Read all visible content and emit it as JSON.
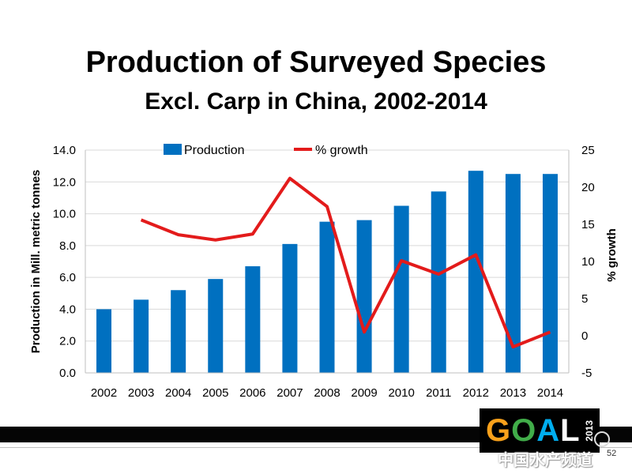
{
  "slide": {
    "title": "Production of Surveyed Species",
    "subtitle": "Excl. Carp in China, 2002-2014",
    "page_number": "52",
    "logo_text": "GOAL",
    "logo_year": "2013",
    "watermark": "中国水产频道"
  },
  "colors": {
    "bar": "#0070C0",
    "line": "#E31B1B",
    "grid": "#D9D9D9",
    "logo_letters": [
      "#F9A11B",
      "#41AD49",
      "#00AEEF",
      "#ffffff"
    ]
  },
  "chart_data": {
    "type": "bar",
    "categories": [
      "2002",
      "2003",
      "2004",
      "2005",
      "2006",
      "2007",
      "2008",
      "2009",
      "2010",
      "2011",
      "2012",
      "2013",
      "2014"
    ],
    "series": [
      {
        "name": "Production",
        "type": "bar",
        "axis": "left",
        "values": [
          4.0,
          4.6,
          5.2,
          5.9,
          6.7,
          8.1,
          9.5,
          9.6,
          10.5,
          11.4,
          12.7,
          12.5,
          12.5
        ]
      },
      {
        "name": "% growth",
        "type": "line",
        "axis": "right",
        "values": [
          null,
          15.6,
          13.6,
          12.9,
          13.7,
          21.2,
          17.4,
          0.5,
          10.1,
          8.3,
          10.9,
          -1.5,
          0.5
        ]
      }
    ],
    "ylabel": "Production in Mill. metric tonnes",
    "y2label": "% growth",
    "ylim": [
      0,
      14
    ],
    "y2lim": [
      -5,
      25
    ],
    "yticks": [
      "0.0",
      "2.0",
      "4.0",
      "6.0",
      "8.0",
      "10.0",
      "12.0",
      "14.0"
    ],
    "y2ticks": [
      "-5",
      "0",
      "5",
      "10",
      "15",
      "20",
      "25"
    ],
    "grid": true,
    "legend": "top"
  }
}
